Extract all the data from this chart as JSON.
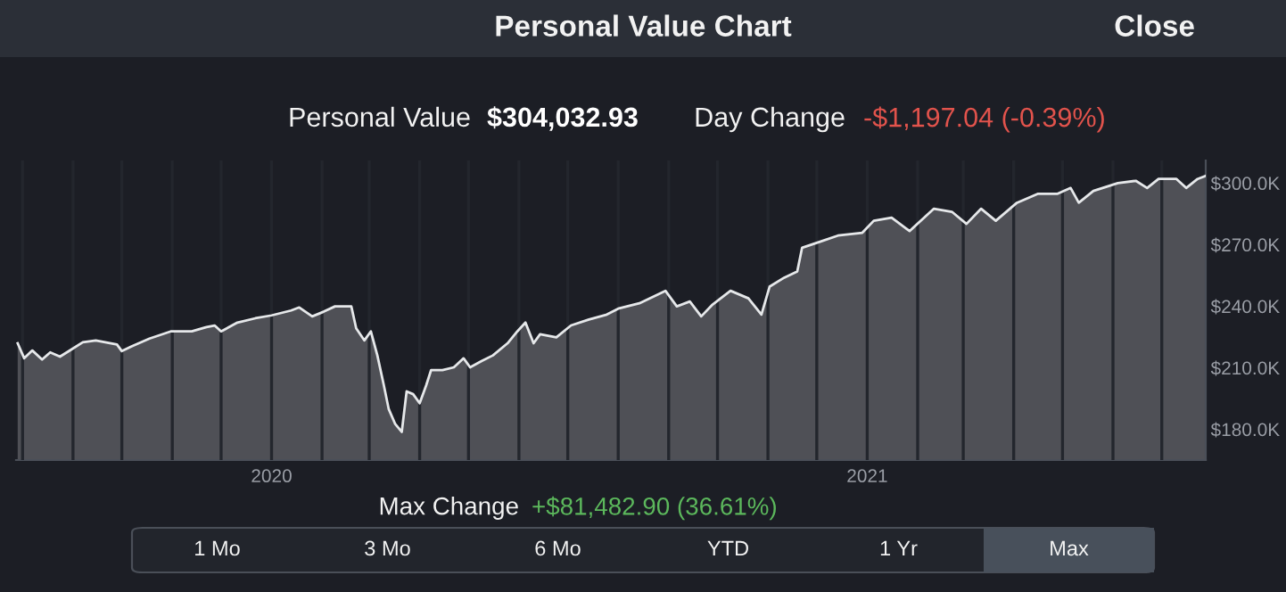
{
  "chart_data": {
    "type": "area",
    "title": "Personal Value Chart",
    "annotations": [
      "Close",
      "Personal Value",
      "$304,032.93",
      "Day Change",
      "-$1,197.04 (-0.39%)",
      "Max Change",
      "+$81,482.90 (36.61%)",
      "1 Mo",
      "3 Mo",
      "6 Mo",
      "YTD",
      "1 Yr",
      "Max"
    ],
    "x": [
      "2019-07-29",
      "2019-08-02",
      "2019-08-07",
      "2019-08-13",
      "2019-08-18",
      "2019-08-24",
      "2019-08-31",
      "2019-09-07",
      "2019-09-15",
      "2019-09-28",
      "2019-10-01",
      "2019-10-07",
      "2019-10-18",
      "2019-10-31",
      "2019-11-13",
      "2019-11-22",
      "2019-11-27",
      "2019-12-01",
      "2019-12-11",
      "2019-12-22",
      "2020-01-01",
      "2020-01-13",
      "2020-01-18",
      "2020-01-26",
      "2020-02-02",
      "2020-02-09",
      "2020-02-19",
      "2020-02-22",
      "2020-02-27",
      "2020-03-02",
      "2020-03-06",
      "2020-03-10",
      "2020-03-13",
      "2020-03-17",
      "2020-03-21",
      "2020-03-24",
      "2020-03-28",
      "2020-04-01",
      "2020-04-05",
      "2020-04-08",
      "2020-04-15",
      "2020-04-22",
      "2020-04-28",
      "2020-05-02",
      "2020-05-09",
      "2020-05-16",
      "2020-05-25",
      "2020-05-31",
      "2020-06-05",
      "2020-06-10",
      "2020-06-14",
      "2020-06-24",
      "2020-07-03",
      "2020-07-14",
      "2020-07-25",
      "2020-08-01",
      "2020-08-14",
      "2020-08-30",
      "2020-09-06",
      "2020-09-14",
      "2020-09-21",
      "2020-09-28",
      "2020-10-09",
      "2020-10-20",
      "2020-10-28",
      "2020-11-02",
      "2020-11-11",
      "2020-11-19",
      "2020-11-22",
      "2020-12-03",
      "2020-12-14",
      "2020-12-29",
      "2021-01-05",
      "2021-01-16",
      "2021-01-27",
      "2021-02-11",
      "2021-02-22",
      "2021-03-03",
      "2021-03-12",
      "2021-03-21",
      "2021-04-03",
      "2021-04-16",
      "2021-04-28",
      "2021-05-06",
      "2021-05-11",
      "2021-05-20",
      "2021-06-04",
      "2021-06-15",
      "2021-06-22",
      "2021-06-29",
      "2021-07-10",
      "2021-07-16",
      "2021-07-23",
      "2021-07-28"
    ],
    "series": [
      {
        "color": "#e6e8ea",
        "values": [
          221900,
          214600,
          218400,
          214000,
          217500,
          215400,
          218900,
          222400,
          223300,
          221300,
          218100,
          220400,
          224200,
          227700,
          227700,
          229800,
          230600,
          227700,
          232000,
          234100,
          235500,
          237900,
          239400,
          235000,
          237300,
          239900,
          239900,
          229200,
          223300,
          227700,
          216000,
          201400,
          189800,
          182500,
          178700,
          198500,
          197100,
          192700,
          201400,
          208800,
          208800,
          210200,
          214600,
          210200,
          213200,
          216000,
          221900,
          227700,
          232000,
          221900,
          226300,
          224800,
          230600,
          233500,
          235900,
          238800,
          241400,
          247500,
          239900,
          242300,
          235000,
          240800,
          247500,
          243800,
          235900,
          249500,
          253900,
          256900,
          268500,
          271400,
          274400,
          275800,
          281600,
          283100,
          276600,
          287500,
          286000,
          280100,
          287500,
          281600,
          290400,
          294800,
          294800,
          297600,
          290400,
          296200,
          300000,
          301100,
          297600,
          302000,
          302000,
          297600,
          302000,
          303500
        ]
      }
    ],
    "xlim": [
      "2019-07-28",
      "2021-07-28"
    ],
    "xticks": [
      {
        "value": "2019-08-01",
        "label": null
      },
      {
        "value": "2019-09-01",
        "label": null
      },
      {
        "value": "2019-10-01",
        "label": null
      },
      {
        "value": "2019-11-01",
        "label": null
      },
      {
        "value": "2019-12-01",
        "label": null
      },
      {
        "value": "2020-01-01",
        "label": "2020"
      },
      {
        "value": "2020-02-01",
        "label": null
      },
      {
        "value": "2020-03-01",
        "label": null
      },
      {
        "value": "2020-04-01",
        "label": null
      },
      {
        "value": "2020-05-01",
        "label": null
      },
      {
        "value": "2020-06-01",
        "label": null
      },
      {
        "value": "2020-07-01",
        "label": null
      },
      {
        "value": "2020-08-01",
        "label": null
      },
      {
        "value": "2020-09-01",
        "label": null
      },
      {
        "value": "2020-10-01",
        "label": null
      },
      {
        "value": "2020-11-01",
        "label": null
      },
      {
        "value": "2020-12-01",
        "label": null
      },
      {
        "value": "2021-01-01",
        "label": "2021"
      },
      {
        "value": "2021-02-01",
        "label": null
      },
      {
        "value": "2021-03-01",
        "label": null
      },
      {
        "value": "2021-04-01",
        "label": null
      },
      {
        "value": "2021-05-01",
        "label": null
      },
      {
        "value": "2021-06-01",
        "label": null
      },
      {
        "value": "2021-07-01",
        "label": null
      }
    ],
    "ylim": [
      165000,
      311000
    ],
    "yticks": [
      {
        "value": 180000,
        "label": "$180.0K"
      },
      {
        "value": 210000,
        "label": "$210.0K"
      },
      {
        "value": 240000,
        "label": "$240.0K"
      },
      {
        "value": 270000,
        "label": "$270.0K"
      },
      {
        "value": 300000,
        "label": "$300.0K"
      }
    ],
    "grid": "x",
    "legend": false
  }
}
